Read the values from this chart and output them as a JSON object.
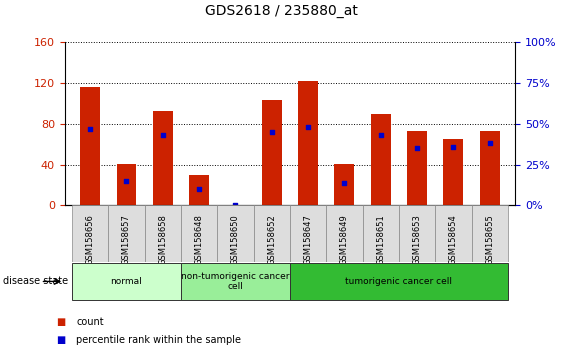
{
  "title": "GDS2618 / 235880_at",
  "samples": [
    "GSM158656",
    "GSM158657",
    "GSM158658",
    "GSM158648",
    "GSM158650",
    "GSM158652",
    "GSM158647",
    "GSM158649",
    "GSM158651",
    "GSM158653",
    "GSM158654",
    "GSM158655"
  ],
  "counts": [
    116,
    41,
    93,
    30,
    0,
    103,
    122,
    41,
    90,
    73,
    65,
    73
  ],
  "percentile_values": [
    47,
    15,
    43,
    10,
    0,
    45,
    48,
    14,
    43,
    35,
    36,
    38
  ],
  "left_ylim": [
    0,
    160
  ],
  "left_yticks": [
    0,
    40,
    80,
    120,
    160
  ],
  "right_ylim": [
    0,
    100
  ],
  "right_yticks": [
    0,
    25,
    50,
    75,
    100
  ],
  "group_labels": [
    "normal",
    "non-tumorigenic cancer\ncell",
    "tumorigenic cancer cell"
  ],
  "group_starts": [
    0,
    3,
    6
  ],
  "group_ends": [
    3,
    6,
    12
  ],
  "group_colors": [
    "#ccffcc",
    "#99ee99",
    "#33bb33"
  ],
  "bar_color": "#cc2200",
  "percentile_color": "#0000cc",
  "grid_color": "#000000",
  "bg_color": "#ffffff",
  "tick_bg": "#dddddd",
  "disease_state_label": "disease state",
  "legend_count_label": "count",
  "legend_percentile_label": "percentile rank within the sample",
  "bar_width": 0.55
}
